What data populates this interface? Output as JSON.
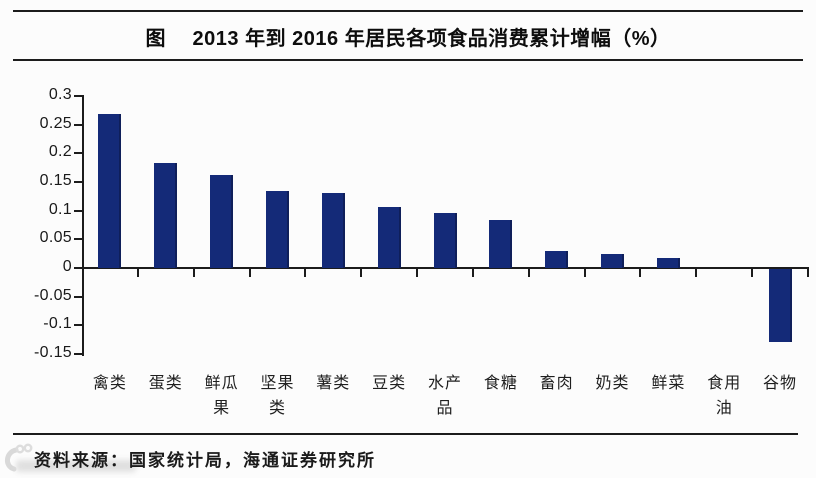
{
  "page": {
    "background": "#fcfcfc"
  },
  "header": {
    "title": "图　 2013 年到 2016 年居民各项食品消费累计增幅（%）"
  },
  "footer": {
    "source": "资料来源：国家统计局，海通证券研究所"
  },
  "chart_data": {
    "type": "bar",
    "title": "2013 年到 2016 年居民各项食品消费累计增幅（%）",
    "categories": [
      "禽类",
      "蛋类",
      "鲜瓜果",
      "坚果类",
      "薯类",
      "豆类",
      "水产品",
      "食糖",
      "畜肉",
      "奶类",
      "鲜菜",
      "食用油",
      "谷物"
    ],
    "values": [
      0.268,
      0.183,
      0.163,
      0.134,
      0.13,
      0.106,
      0.096,
      0.084,
      0.03,
      0.024,
      0.018,
      0,
      -0.127
    ],
    "xlabel": "",
    "ylabel": "",
    "ylim": [
      -0.15,
      0.3
    ],
    "yticks": [
      0.3,
      0.25,
      0.2,
      0.15,
      0.1,
      0.05,
      0,
      -0.05,
      -0.1,
      -0.15
    ],
    "grid": false,
    "legend_position": "none",
    "bar_color": "#142a78",
    "axis_color": "#1c1c1c"
  }
}
